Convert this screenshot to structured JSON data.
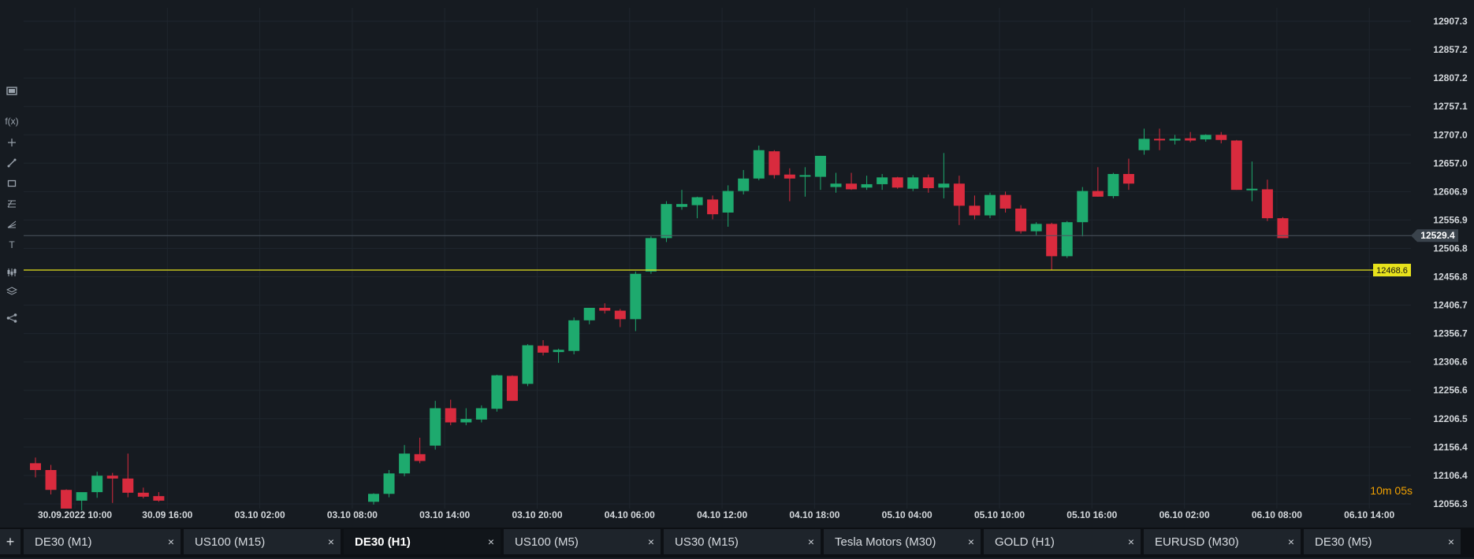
{
  "chart_data": {
    "type": "candlestick",
    "instrument": "DE30",
    "timeframe": "H1",
    "y_ticks": [
      "12907.3",
      "12857.2",
      "12807.2",
      "12757.1",
      "12707.0",
      "12657.0",
      "12606.9",
      "12556.9",
      "12506.8",
      "12456.8",
      "12406.7",
      "12356.7",
      "12306.6",
      "12256.6",
      "12206.5",
      "12156.4",
      "12106.4",
      "12056.3"
    ],
    "ylim": [
      12052.0,
      12918.0
    ],
    "x_ticks": [
      "30.09.2022 10:00",
      "30.09 16:00",
      "03.10 02:00",
      "03.10 08:00",
      "03.10 14:00",
      "03.10 20:00",
      "04.10 06:00",
      "04.10 12:00",
      "04.10 18:00",
      "05.10 04:00",
      "05.10 10:00",
      "05.10 16:00",
      "06.10 02:00",
      "06.10 08:00",
      "06.10 14:00"
    ],
    "current_price": "12529.4",
    "horizontal_line": "12468.6",
    "colors": {
      "up": "#1eaa6e",
      "down": "#d92b3e",
      "grid": "#1f262e",
      "background": "#161b21",
      "level_line": "#e7e21c",
      "price_line": "#4b5560"
    },
    "candles": [
      {
        "o": 12128,
        "h": 12138,
        "l": 12103,
        "c": 12116
      },
      {
        "o": 12116,
        "h": 12125,
        "l": 12073,
        "c": 12081
      },
      {
        "o": 12081,
        "h": 12082,
        "l": 12048,
        "c": 12048
      },
      {
        "o": 12062,
        "h": 12075,
        "l": 12045,
        "c": 12077
      },
      {
        "o": 12077,
        "h": 12113,
        "l": 12067,
        "c": 12106
      },
      {
        "o": 12106,
        "h": 12111,
        "l": 12058,
        "c": 12101
      },
      {
        "o": 12101,
        "h": 12145,
        "l": 12068,
        "c": 12076
      },
      {
        "o": 12076,
        "h": 12085,
        "l": 12066,
        "c": 12069
      },
      {
        "o": 12070,
        "h": 12077,
        "l": 12060,
        "c": 12062
      },
      {
        "o": 12060,
        "h": 12075,
        "l": 12055,
        "c": 12074
      },
      {
        "o": 12074,
        "h": 12116,
        "l": 12068,
        "c": 12110
      },
      {
        "o": 12110,
        "h": 12160,
        "l": 12105,
        "c": 12145
      },
      {
        "o": 12144,
        "h": 12173,
        "l": 12128,
        "c": 12132
      },
      {
        "o": 12159,
        "h": 12238,
        "l": 12152,
        "c": 12225
      },
      {
        "o": 12225,
        "h": 12240,
        "l": 12195,
        "c": 12200
      },
      {
        "o": 12200,
        "h": 12225,
        "l": 12195,
        "c": 12206
      },
      {
        "o": 12205,
        "h": 12230,
        "l": 12200,
        "c": 12225
      },
      {
        "o": 12224,
        "h": 12284,
        "l": 12219,
        "c": 12283
      },
      {
        "o": 12282,
        "h": 12283,
        "l": 12238,
        "c": 12238
      },
      {
        "o": 12268,
        "h": 12338,
        "l": 12264,
        "c": 12336
      },
      {
        "o": 12335,
        "h": 12345,
        "l": 12318,
        "c": 12323
      },
      {
        "o": 12324,
        "h": 12330,
        "l": 12305,
        "c": 12328
      },
      {
        "o": 12326,
        "h": 12385,
        "l": 12320,
        "c": 12380
      },
      {
        "o": 12380,
        "h": 12402,
        "l": 12373,
        "c": 12402
      },
      {
        "o": 12402,
        "h": 12410,
        "l": 12392,
        "c": 12397
      },
      {
        "o": 12397,
        "h": 12400,
        "l": 12368,
        "c": 12382
      },
      {
        "o": 12382,
        "h": 12466,
        "l": 12361,
        "c": 12462
      },
      {
        "o": 12466,
        "h": 12528,
        "l": 12462,
        "c": 12525
      },
      {
        "o": 12525,
        "h": 12590,
        "l": 12518,
        "c": 12585
      },
      {
        "o": 12580,
        "h": 12610,
        "l": 12575,
        "c": 12585
      },
      {
        "o": 12583,
        "h": 12598,
        "l": 12560,
        "c": 12597
      },
      {
        "o": 12593,
        "h": 12600,
        "l": 12558,
        "c": 12567
      },
      {
        "o": 12570,
        "h": 12618,
        "l": 12545,
        "c": 12608
      },
      {
        "o": 12608,
        "h": 12645,
        "l": 12602,
        "c": 12630
      },
      {
        "o": 12630,
        "h": 12688,
        "l": 12627,
        "c": 12680
      },
      {
        "o": 12678,
        "h": 12680,
        "l": 12630,
        "c": 12636
      },
      {
        "o": 12637,
        "h": 12648,
        "l": 12590,
        "c": 12630
      },
      {
        "o": 12635,
        "h": 12650,
        "l": 12598,
        "c": 12636
      },
      {
        "o": 12633,
        "h": 12670,
        "l": 12610,
        "c": 12670
      },
      {
        "o": 12615,
        "h": 12640,
        "l": 12605,
        "c": 12621
      },
      {
        "o": 12621,
        "h": 12640,
        "l": 12610,
        "c": 12611
      },
      {
        "o": 12614,
        "h": 12635,
        "l": 12610,
        "c": 12620
      },
      {
        "o": 12620,
        "h": 12638,
        "l": 12610,
        "c": 12632
      },
      {
        "o": 12632,
        "h": 12633,
        "l": 12612,
        "c": 12614
      },
      {
        "o": 12612,
        "h": 12636,
        "l": 12608,
        "c": 12632
      },
      {
        "o": 12632,
        "h": 12637,
        "l": 12605,
        "c": 12613
      },
      {
        "o": 12614,
        "h": 12675,
        "l": 12595,
        "c": 12621
      },
      {
        "o": 12621,
        "h": 12635,
        "l": 12548,
        "c": 12582
      },
      {
        "o": 12582,
        "h": 12600,
        "l": 12558,
        "c": 12565
      },
      {
        "o": 12565,
        "h": 12605,
        "l": 12560,
        "c": 12601
      },
      {
        "o": 12601,
        "h": 12607,
        "l": 12570,
        "c": 12577
      },
      {
        "o": 12577,
        "h": 12583,
        "l": 12533,
        "c": 12537
      },
      {
        "o": 12537,
        "h": 12553,
        "l": 12530,
        "c": 12550
      },
      {
        "o": 12550,
        "h": 12552,
        "l": 12468,
        "c": 12493
      },
      {
        "o": 12493,
        "h": 12555,
        "l": 12490,
        "c": 12553
      },
      {
        "o": 12553,
        "h": 12615,
        "l": 12528,
        "c": 12608
      },
      {
        "o": 12608,
        "h": 12650,
        "l": 12598,
        "c": 12598
      },
      {
        "o": 12599,
        "h": 12640,
        "l": 12595,
        "c": 12638
      },
      {
        "o": 12638,
        "h": 12665,
        "l": 12610,
        "c": 12621
      },
      {
        "o": 12680,
        "h": 12718,
        "l": 12672,
        "c": 12700
      },
      {
        "o": 12700,
        "h": 12718,
        "l": 12680,
        "c": 12698
      },
      {
        "o": 12697,
        "h": 12707,
        "l": 12690,
        "c": 12700
      },
      {
        "o": 12701,
        "h": 12712,
        "l": 12694,
        "c": 12697
      },
      {
        "o": 12699,
        "h": 12708,
        "l": 12695,
        "c": 12707
      },
      {
        "o": 12707,
        "h": 12712,
        "l": 12692,
        "c": 12698
      },
      {
        "o": 12697,
        "h": 12698,
        "l": 12610,
        "c": 12610
      },
      {
        "o": 12610,
        "h": 12660,
        "l": 12590,
        "c": 12612
      },
      {
        "o": 12611,
        "h": 12628,
        "l": 12555,
        "c": 12560
      },
      {
        "o": 12560,
        "h": 12562,
        "l": 12525,
        "c": 12525
      }
    ]
  },
  "timer": "10m 05s",
  "tabs": [
    {
      "label": "DE30 (M1)"
    },
    {
      "label": "US100 (M15)"
    },
    {
      "label": "DE30 (H1)",
      "active": true
    },
    {
      "label": "US100 (M5)"
    },
    {
      "label": "US30 (M15)"
    },
    {
      "label": "Tesla Motors (M30)"
    },
    {
      "label": "GOLD (H1)"
    },
    {
      "label": "EURUSD (M30)"
    },
    {
      "label": "DE30 (M5)"
    }
  ],
  "tab_close_symbol": "×",
  "add_tab_symbol": "+",
  "toolbar": {
    "function_label": "f(x)",
    "text_tool_label": "T",
    "icons": [
      "layout-icon",
      "function-icon",
      "crosshair-icon",
      "trendline-icon",
      "rectangle-icon",
      "fibonacci-icon",
      "pitchfork-icon",
      "text-tool-icon",
      "indicators-icon",
      "layers-icon",
      "share-icon"
    ]
  }
}
